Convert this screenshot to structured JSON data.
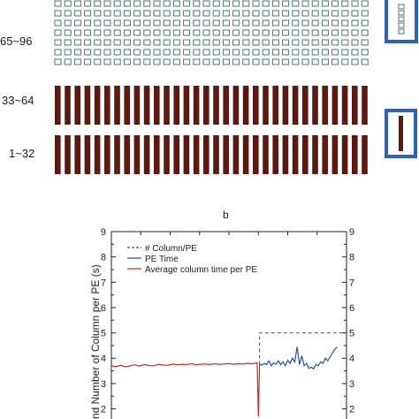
{
  "panel_a": {
    "row_labels": [
      "65~96",
      "33~64",
      "1~32"
    ],
    "cell_colors": {
      "outline_cell": "#4e7470",
      "filled_cell": "#5a1a12",
      "inset_frame": "#2e64b8"
    }
  },
  "panel_b": {
    "label": "b"
  },
  "chart_data": {
    "type": "line",
    "title": "",
    "xlabel": "",
    "ylabel": "and Number of Column per PE (s)",
    "ylim": [
      1.6,
      9
    ],
    "yticks": [
      2,
      3,
      4,
      5,
      6,
      7,
      8,
      9
    ],
    "xlim": [
      0,
      100
    ],
    "grid": false,
    "legend": {
      "placement": "top-left"
    },
    "series": [
      {
        "name": "# Column/PE",
        "style": "dashed",
        "color": "#555555",
        "x": [
          63,
          63,
          100
        ],
        "y": [
          3.75,
          5,
          5
        ]
      },
      {
        "name": "PE Time",
        "style": "solid",
        "color": "#2d4f9e",
        "x": [
          63,
          64,
          65,
          66,
          67,
          68,
          69,
          70,
          71,
          72,
          73,
          74,
          75,
          76,
          77,
          78,
          79,
          80,
          81,
          82,
          83,
          84,
          85,
          86,
          87,
          88,
          89,
          90,
          91,
          92,
          93,
          94,
          95,
          96
        ],
        "y": [
          3.78,
          3.72,
          3.8,
          3.75,
          3.9,
          3.7,
          3.82,
          3.76,
          3.9,
          3.74,
          3.86,
          3.7,
          3.92,
          3.8,
          4.0,
          3.85,
          4.45,
          3.75,
          4.1,
          3.7,
          3.8,
          3.6,
          3.65,
          3.58,
          3.75,
          3.7,
          3.85,
          3.8,
          4.0,
          3.9,
          4.05,
          4.2,
          4.35,
          4.45
        ]
      },
      {
        "name": "Average column time per PE",
        "style": "solid",
        "color": "#c0302a",
        "x": [
          0,
          2,
          4,
          6,
          8,
          10,
          12,
          14,
          16,
          18,
          20,
          22,
          24,
          26,
          28,
          30,
          32,
          34,
          36,
          38,
          40,
          42,
          44,
          46,
          48,
          50,
          52,
          54,
          56,
          58,
          60,
          62,
          62.5,
          63
        ],
        "y": [
          3.7,
          3.67,
          3.72,
          3.66,
          3.7,
          3.74,
          3.69,
          3.75,
          3.71,
          3.7,
          3.76,
          3.73,
          3.72,
          3.77,
          3.74,
          3.76,
          3.75,
          3.78,
          3.74,
          3.76,
          3.77,
          3.75,
          3.78,
          3.76,
          3.77,
          3.79,
          3.76,
          3.78,
          3.77,
          3.8,
          3.78,
          3.82,
          1.7,
          3.75
        ]
      }
    ]
  }
}
